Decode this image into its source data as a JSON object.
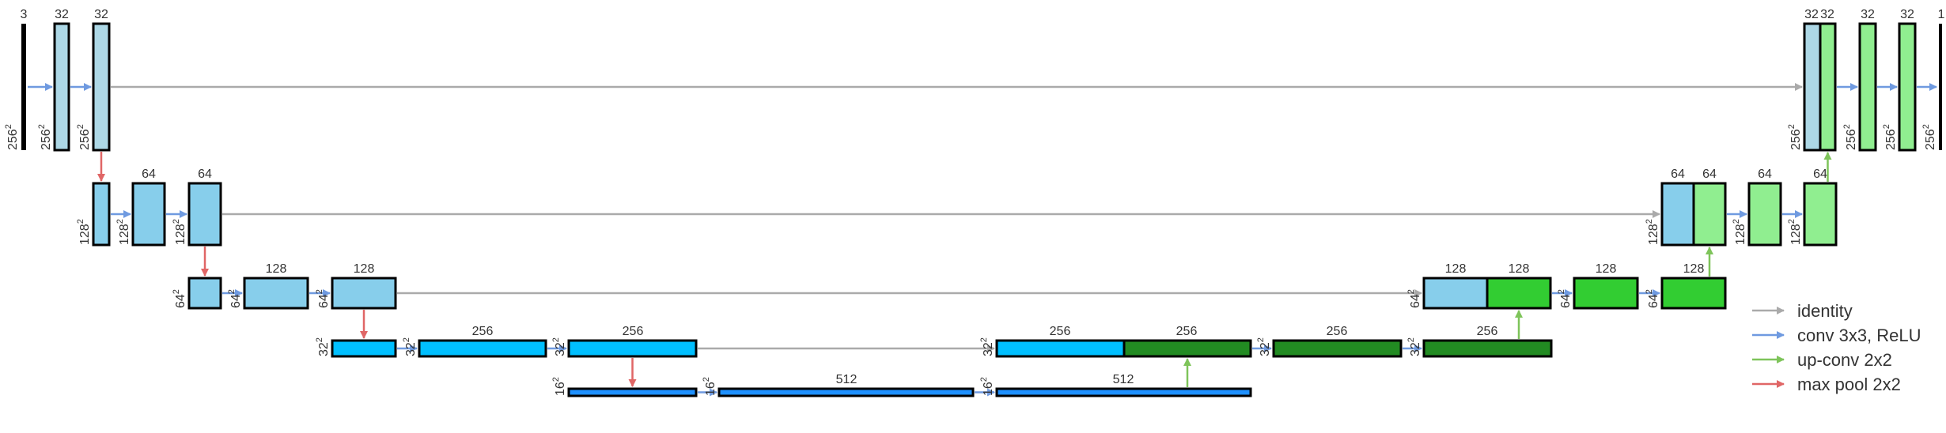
{
  "colors": {
    "encoder_top": "#add8e6",
    "encoder_mid": "#87ceeb",
    "encoder_deep": "#00bfff",
    "bottleneck": "#1e90ff",
    "decoder_light": "#90ee90",
    "decoder_mid": "#32cd32",
    "decoder_dark": "#228b22",
    "identity": "#aaaaaa",
    "conv": "#6f9ae0",
    "upconv": "#7ec45a",
    "maxpool": "#e06666"
  },
  "channel_labels": [
    {
      "text": "3"
    },
    {
      "text": "32"
    },
    {
      "text": "32"
    },
    {
      "text": "64"
    },
    {
      "text": "64"
    },
    {
      "text": "128"
    },
    {
      "text": "128"
    },
    {
      "text": "256"
    },
    {
      "text": "256"
    },
    {
      "text": "512"
    },
    {
      "text": "256"
    },
    {
      "text": "256"
    },
    {
      "text": "256"
    },
    {
      "text": "256"
    },
    {
      "text": "512"
    },
    {
      "text": "128"
    },
    {
      "text": "128"
    },
    {
      "text": "128"
    },
    {
      "text": "128"
    },
    {
      "text": "64"
    },
    {
      "text": "64"
    },
    {
      "text": "64"
    },
    {
      "text": "64"
    },
    {
      "text": "32"
    },
    {
      "text": "32"
    },
    {
      "text": "32"
    },
    {
      "text": "32"
    },
    {
      "text": "1"
    }
  ],
  "size_labels": [
    {
      "base": "256",
      "exp": "2"
    },
    {
      "base": "256",
      "exp": "2"
    },
    {
      "base": "256",
      "exp": "2"
    },
    {
      "base": "128",
      "exp": "2"
    },
    {
      "base": "128",
      "exp": "2"
    },
    {
      "base": "128",
      "exp": "2"
    },
    {
      "base": "64",
      "exp": "2"
    },
    {
      "base": "64",
      "exp": "2"
    },
    {
      "base": "64",
      "exp": "2"
    },
    {
      "base": "32",
      "exp": "2"
    },
    {
      "base": "32",
      "exp": "2"
    },
    {
      "base": "32",
      "exp": "2"
    },
    {
      "base": "16",
      "exp": "2"
    },
    {
      "base": "16",
      "exp": "2"
    },
    {
      "base": "16",
      "exp": "2"
    },
    {
      "base": "32",
      "exp": "2"
    },
    {
      "base": "32",
      "exp": "2"
    },
    {
      "base": "32",
      "exp": "2"
    },
    {
      "base": "64",
      "exp": "2"
    },
    {
      "base": "64",
      "exp": "2"
    },
    {
      "base": "64",
      "exp": "2"
    },
    {
      "base": "128",
      "exp": "2"
    },
    {
      "base": "128",
      "exp": "2"
    },
    {
      "base": "128",
      "exp": "2"
    },
    {
      "base": "256",
      "exp": "2"
    },
    {
      "base": "256",
      "exp": "2"
    },
    {
      "base": "256",
      "exp": "2"
    },
    {
      "base": "256",
      "exp": "2"
    }
  ],
  "legend": [
    {
      "label": "identity",
      "color": "#aaaaaa"
    },
    {
      "label": "conv 3x3, ReLU",
      "color": "#6f9ae0"
    },
    {
      "label": "up-conv 2x2",
      "color": "#7ec45a"
    },
    {
      "label": "max pool 2x2",
      "color": "#e06666"
    }
  ]
}
